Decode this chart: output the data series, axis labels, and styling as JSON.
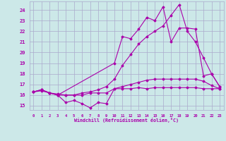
{
  "xlabel": "Windchill (Refroidissement éolien,°C)",
  "background_color": "#cce8e8",
  "grid_color": "#aaaacc",
  "line_color": "#aa00aa",
  "xlim": [
    -0.5,
    23.5
  ],
  "ylim": [
    14.6,
    24.8
  ],
  "yticks": [
    15,
    16,
    17,
    18,
    19,
    20,
    21,
    22,
    23,
    24
  ],
  "xticks": [
    0,
    1,
    2,
    3,
    4,
    5,
    6,
    7,
    8,
    9,
    10,
    11,
    12,
    13,
    14,
    15,
    16,
    17,
    18,
    19,
    20,
    21,
    22,
    23
  ],
  "lines": [
    {
      "x": [
        0,
        1,
        2,
        3,
        4,
        5,
        6,
        7,
        8,
        9,
        10,
        11,
        12,
        13,
        14,
        15,
        16,
        17,
        18,
        19,
        20,
        21,
        22,
        23
      ],
      "y": [
        16.3,
        16.5,
        16.2,
        16.0,
        15.3,
        15.5,
        15.2,
        14.8,
        15.3,
        15.2,
        16.6,
        16.6,
        16.6,
        16.7,
        16.6,
        16.7,
        16.7,
        16.7,
        16.7,
        16.7,
        16.7,
        16.6,
        16.6,
        16.6
      ]
    },
    {
      "x": [
        0,
        1,
        2,
        3,
        4,
        5,
        6,
        7,
        8,
        9,
        10,
        11,
        12,
        13,
        14,
        15,
        16,
        17,
        18,
        19,
        20,
        21,
        22,
        23
      ],
      "y": [
        16.3,
        16.5,
        16.2,
        16.0,
        16.0,
        16.0,
        16.0,
        16.2,
        16.2,
        16.2,
        16.6,
        16.8,
        17.0,
        17.2,
        17.4,
        17.5,
        17.5,
        17.5,
        17.5,
        17.5,
        17.5,
        17.3,
        16.9,
        16.6
      ]
    },
    {
      "x": [
        0,
        1,
        2,
        3,
        4,
        5,
        6,
        7,
        8,
        9,
        10,
        11,
        12,
        13,
        14,
        15,
        16,
        17,
        18,
        19,
        20,
        21,
        22,
        23
      ],
      "y": [
        16.3,
        16.4,
        16.2,
        16.1,
        16.0,
        16.0,
        16.2,
        16.3,
        16.5,
        16.8,
        17.5,
        18.8,
        19.8,
        20.8,
        21.5,
        22.0,
        22.5,
        23.5,
        24.5,
        22.0,
        21.0,
        19.5,
        18.0,
        16.8
      ]
    },
    {
      "x": [
        0,
        1,
        2,
        3,
        10,
        11,
        12,
        13,
        14,
        15,
        16,
        17,
        18,
        19,
        20,
        21,
        22,
        23
      ],
      "y": [
        16.3,
        16.5,
        16.2,
        16.0,
        19.0,
        21.5,
        21.3,
        22.2,
        23.3,
        23.0,
        24.3,
        21.0,
        22.3,
        22.3,
        22.2,
        17.8,
        18.0,
        16.8
      ]
    }
  ]
}
